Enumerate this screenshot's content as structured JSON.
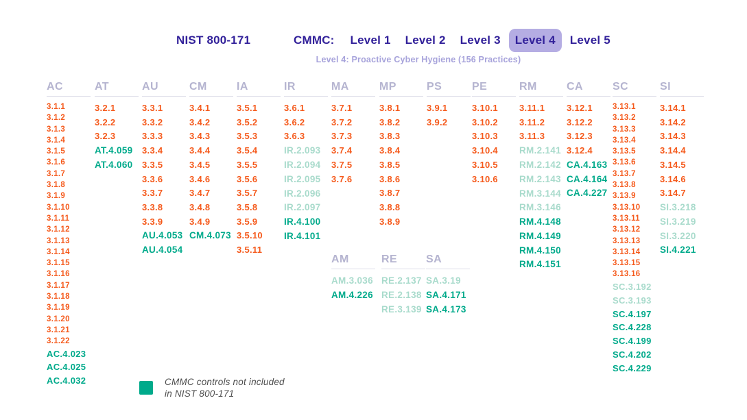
{
  "header": {
    "nist_label": "NIST 800-171",
    "cmmc_label": "CMMC:",
    "levels": [
      {
        "label": "Level 1",
        "active": false
      },
      {
        "label": "Level 2",
        "active": false
      },
      {
        "label": "Level 3",
        "active": false
      },
      {
        "label": "Level 4",
        "active": true
      },
      {
        "label": "Level 5",
        "active": false
      }
    ],
    "subtitle": "Level 4: Proactive Cyber Hygiene (156 Practices)"
  },
  "colors": {
    "purple": "#32219A",
    "active_tab_bg": "#B5ADE3",
    "subtitle_purple": "#A7A3DB",
    "column_header_gray": "#B5B4D0",
    "nist_orange": "#F55A1C",
    "cmmc_new_teal": "#00AA8B",
    "cmmc_lower_light_teal": "#A9DBCC",
    "rule_gray": "#DCDCE8",
    "legend_text_gray": "#4D4D4D"
  },
  "style_legend": {
    "nist": "NIST 800-171 control (orange)",
    "cmmc_lower": "CMMC control from lower level (light teal)",
    "cmmc_new": "CMMC control not in NIST 800-171 (teal)"
  },
  "columns": [
    {
      "id": "AC",
      "dense": true,
      "items": [
        {
          "code": "3.1.1",
          "style": "nist"
        },
        {
          "code": "3.1.2",
          "style": "nist"
        },
        {
          "code": "3.1.3",
          "style": "nist"
        },
        {
          "code": "3.1.4",
          "style": "nist"
        },
        {
          "code": "3.1.5",
          "style": "nist"
        },
        {
          "code": "3.1.6",
          "style": "nist"
        },
        {
          "code": "3.1.7",
          "style": "nist"
        },
        {
          "code": "3.1.8",
          "style": "nist"
        },
        {
          "code": "3.1.9",
          "style": "nist"
        },
        {
          "code": "3.1.10",
          "style": "nist"
        },
        {
          "code": "3.1.11",
          "style": "nist"
        },
        {
          "code": "3.1.12",
          "style": "nist"
        },
        {
          "code": "3.1.13",
          "style": "nist"
        },
        {
          "code": "3.1.14",
          "style": "nist"
        },
        {
          "code": "3.1.15",
          "style": "nist"
        },
        {
          "code": "3.1.16",
          "style": "nist"
        },
        {
          "code": "3.1.17",
          "style": "nist"
        },
        {
          "code": "3.1.18",
          "style": "nist"
        },
        {
          "code": "3.1.19",
          "style": "nist"
        },
        {
          "code": "3.1.20",
          "style": "nist"
        },
        {
          "code": "3.1.21",
          "style": "nist"
        },
        {
          "code": "3.1.22",
          "style": "nist"
        },
        {
          "code": "AC.4.023",
          "style": "cmmc_new"
        },
        {
          "code": "AC.4.025",
          "style": "cmmc_new"
        },
        {
          "code": "AC.4.032",
          "style": "cmmc_new"
        }
      ]
    },
    {
      "id": "AT",
      "dense": false,
      "items": [
        {
          "code": "3.2.1",
          "style": "nist"
        },
        {
          "code": "3.2.2",
          "style": "nist"
        },
        {
          "code": "3.2.3",
          "style": "nist"
        },
        {
          "code": "AT.4.059",
          "style": "cmmc_new"
        },
        {
          "code": "AT.4.060",
          "style": "cmmc_new"
        }
      ]
    },
    {
      "id": "AU",
      "dense": false,
      "items": [
        {
          "code": "3.3.1",
          "style": "nist"
        },
        {
          "code": "3.3.2",
          "style": "nist"
        },
        {
          "code": "3.3.3",
          "style": "nist"
        },
        {
          "code": "3.3.4",
          "style": "nist"
        },
        {
          "code": "3.3.5",
          "style": "nist"
        },
        {
          "code": "3.3.6",
          "style": "nist"
        },
        {
          "code": "3.3.7",
          "style": "nist"
        },
        {
          "code": "3.3.8",
          "style": "nist"
        },
        {
          "code": "3.3.9",
          "style": "nist"
        },
        {
          "code": "AU.4.053",
          "style": "cmmc_new"
        },
        {
          "code": "AU.4.054",
          "style": "cmmc_new"
        }
      ]
    },
    {
      "id": "CM",
      "dense": false,
      "items": [
        {
          "code": "3.4.1",
          "style": "nist"
        },
        {
          "code": "3.4.2",
          "style": "nist"
        },
        {
          "code": "3.4.3",
          "style": "nist"
        },
        {
          "code": "3.4.4",
          "style": "nist"
        },
        {
          "code": "3.4.5",
          "style": "nist"
        },
        {
          "code": "3.4.6",
          "style": "nist"
        },
        {
          "code": "3.4.7",
          "style": "nist"
        },
        {
          "code": "3.4.8",
          "style": "nist"
        },
        {
          "code": "3.4.9",
          "style": "nist"
        },
        {
          "code": "CM.4.073",
          "style": "cmmc_new"
        }
      ]
    },
    {
      "id": "IA",
      "dense": false,
      "items": [
        {
          "code": "3.5.1",
          "style": "nist"
        },
        {
          "code": "3.5.2",
          "style": "nist"
        },
        {
          "code": "3.5.3",
          "style": "nist"
        },
        {
          "code": "3.5.4",
          "style": "nist"
        },
        {
          "code": "3.5.5",
          "style": "nist"
        },
        {
          "code": "3.5.6",
          "style": "nist"
        },
        {
          "code": "3.5.7",
          "style": "nist"
        },
        {
          "code": "3.5.8",
          "style": "nist"
        },
        {
          "code": "3.5.9",
          "style": "nist"
        },
        {
          "code": "3.5.10",
          "style": "nist"
        },
        {
          "code": "3.5.11",
          "style": "nist"
        }
      ]
    },
    {
      "id": "IR",
      "dense": false,
      "items": [
        {
          "code": "3.6.1",
          "style": "nist"
        },
        {
          "code": "3.6.2",
          "style": "nist"
        },
        {
          "code": "3.6.3",
          "style": "nist"
        },
        {
          "code": "IR.2.093",
          "style": "cmmc_lower"
        },
        {
          "code": "IR.2.094",
          "style": "cmmc_lower"
        },
        {
          "code": "IR.2.095",
          "style": "cmmc_lower"
        },
        {
          "code": "IR.2.096",
          "style": "cmmc_lower"
        },
        {
          "code": "IR.2.097",
          "style": "cmmc_lower"
        },
        {
          "code": "IR.4.100",
          "style": "cmmc_new"
        },
        {
          "code": "IR.4.101",
          "style": "cmmc_new"
        }
      ]
    },
    {
      "id": "MA",
      "dense": false,
      "items": [
        {
          "code": "3.7.1",
          "style": "nist"
        },
        {
          "code": "3.7.2",
          "style": "nist"
        },
        {
          "code": "3.7.3",
          "style": "nist"
        },
        {
          "code": "3.7.4",
          "style": "nist"
        },
        {
          "code": "3.7.5",
          "style": "nist"
        },
        {
          "code": "3.7.6",
          "style": "nist"
        }
      ]
    },
    {
      "id": "MP",
      "dense": false,
      "items": [
        {
          "code": "3.8.1",
          "style": "nist"
        },
        {
          "code": "3.8.2",
          "style": "nist"
        },
        {
          "code": "3.8.3",
          "style": "nist"
        },
        {
          "code": "3.8.4",
          "style": "nist"
        },
        {
          "code": "3.8.5",
          "style": "nist"
        },
        {
          "code": "3.8.6",
          "style": "nist"
        },
        {
          "code": "3.8.7",
          "style": "nist"
        },
        {
          "code": "3.8.8",
          "style": "nist"
        },
        {
          "code": "3.8.9",
          "style": "nist"
        }
      ]
    },
    {
      "id": "PS",
      "dense": false,
      "items": [
        {
          "code": "3.9.1",
          "style": "nist"
        },
        {
          "code": "3.9.2",
          "style": "nist"
        }
      ]
    },
    {
      "id": "PE",
      "dense": false,
      "items": [
        {
          "code": "3.10.1",
          "style": "nist"
        },
        {
          "code": "3.10.2",
          "style": "nist"
        },
        {
          "code": "3.10.3",
          "style": "nist"
        },
        {
          "code": "3.10.4",
          "style": "nist"
        },
        {
          "code": "3.10.5",
          "style": "nist"
        },
        {
          "code": "3.10.6",
          "style": "nist"
        }
      ]
    },
    {
      "id": "RM",
      "dense": false,
      "items": [
        {
          "code": "3.11.1",
          "style": "nist"
        },
        {
          "code": "3.11.2",
          "style": "nist"
        },
        {
          "code": "3.11.3",
          "style": "nist"
        },
        {
          "code": "RM.2.141",
          "style": "cmmc_lower"
        },
        {
          "code": "RM.2.142",
          "style": "cmmc_lower"
        },
        {
          "code": "RM.2.143",
          "style": "cmmc_lower"
        },
        {
          "code": "RM.3.144",
          "style": "cmmc_lower"
        },
        {
          "code": "RM.3.146",
          "style": "cmmc_lower"
        },
        {
          "code": "RM.4.148",
          "style": "cmmc_new"
        },
        {
          "code": "RM.4.149",
          "style": "cmmc_new"
        },
        {
          "code": "RM.4.150",
          "style": "cmmc_new"
        },
        {
          "code": "RM.4.151",
          "style": "cmmc_new"
        }
      ]
    },
    {
      "id": "CA",
      "dense": false,
      "items": [
        {
          "code": "3.12.1",
          "style": "nist"
        },
        {
          "code": "3.12.2",
          "style": "nist"
        },
        {
          "code": "3.12.3",
          "style": "nist"
        },
        {
          "code": "3.12.4",
          "style": "nist"
        },
        {
          "code": "CA.4.163",
          "style": "cmmc_new"
        },
        {
          "code": "CA.4.164",
          "style": "cmmc_new"
        },
        {
          "code": "CA.4.227",
          "style": "cmmc_new"
        }
      ]
    },
    {
      "id": "SC",
      "dense": true,
      "items": [
        {
          "code": "3.13.1",
          "style": "nist"
        },
        {
          "code": "3.13.2",
          "style": "nist"
        },
        {
          "code": "3.13.3",
          "style": "nist"
        },
        {
          "code": "3.13.4",
          "style": "nist"
        },
        {
          "code": "3.13.5",
          "style": "nist"
        },
        {
          "code": "3.13.6",
          "style": "nist"
        },
        {
          "code": "3.13.7",
          "style": "nist"
        },
        {
          "code": "3.13.8",
          "style": "nist"
        },
        {
          "code": "3.13.9",
          "style": "nist"
        },
        {
          "code": "3.13.10",
          "style": "nist"
        },
        {
          "code": "3.13.11",
          "style": "nist"
        },
        {
          "code": "3.13.12",
          "style": "nist"
        },
        {
          "code": "3.13.13",
          "style": "nist"
        },
        {
          "code": "3.13.14",
          "style": "nist"
        },
        {
          "code": "3.13.15",
          "style": "nist"
        },
        {
          "code": "3.13.16",
          "style": "nist"
        },
        {
          "code": "SC.3.192",
          "style": "cmmc_lower"
        },
        {
          "code": "SC.3.193",
          "style": "cmmc_lower"
        },
        {
          "code": "SC.4.197",
          "style": "cmmc_new"
        },
        {
          "code": "SC.4.228",
          "style": "cmmc_new"
        },
        {
          "code": "SC.4.199",
          "style": "cmmc_new"
        },
        {
          "code": "SC.4.202",
          "style": "cmmc_new"
        },
        {
          "code": "SC.4.229",
          "style": "cmmc_new"
        }
      ]
    },
    {
      "id": "SI",
      "dense": false,
      "items": [
        {
          "code": "3.14.1",
          "style": "nist"
        },
        {
          "code": "3.14.2",
          "style": "nist"
        },
        {
          "code": "3.14.3",
          "style": "nist"
        },
        {
          "code": "3.14.4",
          "style": "nist"
        },
        {
          "code": "3.14.5",
          "style": "nist"
        },
        {
          "code": "3.14.6",
          "style": "nist"
        },
        {
          "code": "3.14.7",
          "style": "nist"
        },
        {
          "code": "SI.3.218",
          "style": "cmmc_lower"
        },
        {
          "code": "SI.3.219",
          "style": "cmmc_lower"
        },
        {
          "code": "SI.3.220",
          "style": "cmmc_lower"
        },
        {
          "code": "SI.4.221",
          "style": "cmmc_new"
        }
      ]
    }
  ],
  "sub_columns": [
    {
      "id": "AM",
      "items": [
        {
          "code": "AM.3.036",
          "style": "cmmc_lower"
        },
        {
          "code": "AM.4.226",
          "style": "cmmc_new"
        }
      ]
    },
    {
      "id": "RE",
      "items": [
        {
          "code": "RE.2.137",
          "style": "cmmc_lower"
        },
        {
          "code": "RE.2.138",
          "style": "cmmc_lower"
        },
        {
          "code": "RE.3.139",
          "style": "cmmc_lower"
        }
      ]
    },
    {
      "id": "SA",
      "items": [
        {
          "code": "SA.3.19",
          "style": "cmmc_lower"
        },
        {
          "code": "SA.4.171",
          "style": "cmmc_new"
        },
        {
          "code": "SA.4.173",
          "style": "cmmc_new"
        }
      ]
    }
  ],
  "legend": {
    "line1": "CMMC controls not included",
    "line2": "in NIST 800-171"
  }
}
